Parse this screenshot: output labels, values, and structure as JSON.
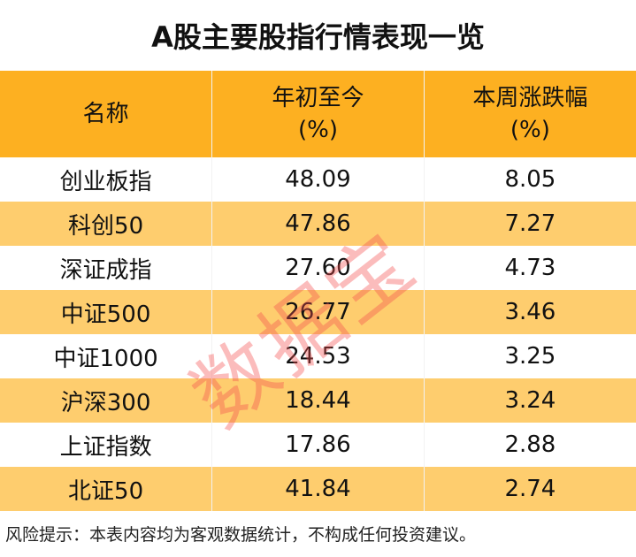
{
  "title": "A股主要股指行情表现一览",
  "columns": [
    "名称",
    "年初至今\n(%)",
    "本周涨跌幅\n(%)"
  ],
  "column_lines": [
    [
      "名称"
    ],
    [
      "年初至今",
      "(%)"
    ],
    [
      "本周涨跌幅",
      "(%)"
    ]
  ],
  "rows": [
    [
      "创业板指",
      "48.09",
      "8.05"
    ],
    [
      "科创50",
      "47.86",
      "7.27"
    ],
    [
      "深证成指",
      "27.60",
      "4.73"
    ],
    [
      "中证500",
      "26.77",
      "3.46"
    ],
    [
      "中证1000",
      "24.53",
      "3.25"
    ],
    [
      "沪深300",
      "18.44",
      "3.24"
    ],
    [
      "上证指数",
      "17.86",
      "2.88"
    ],
    [
      "北证50",
      "41.84",
      "2.74"
    ]
  ],
  "footer": "风险提示：本表内容均为客观数据统计，不构成任何投资建议。",
  "watermark": "数据宝",
  "colors": {
    "header": "#FDB021",
    "alt_row": "#FECD6E",
    "watermark": "#F55050"
  }
}
